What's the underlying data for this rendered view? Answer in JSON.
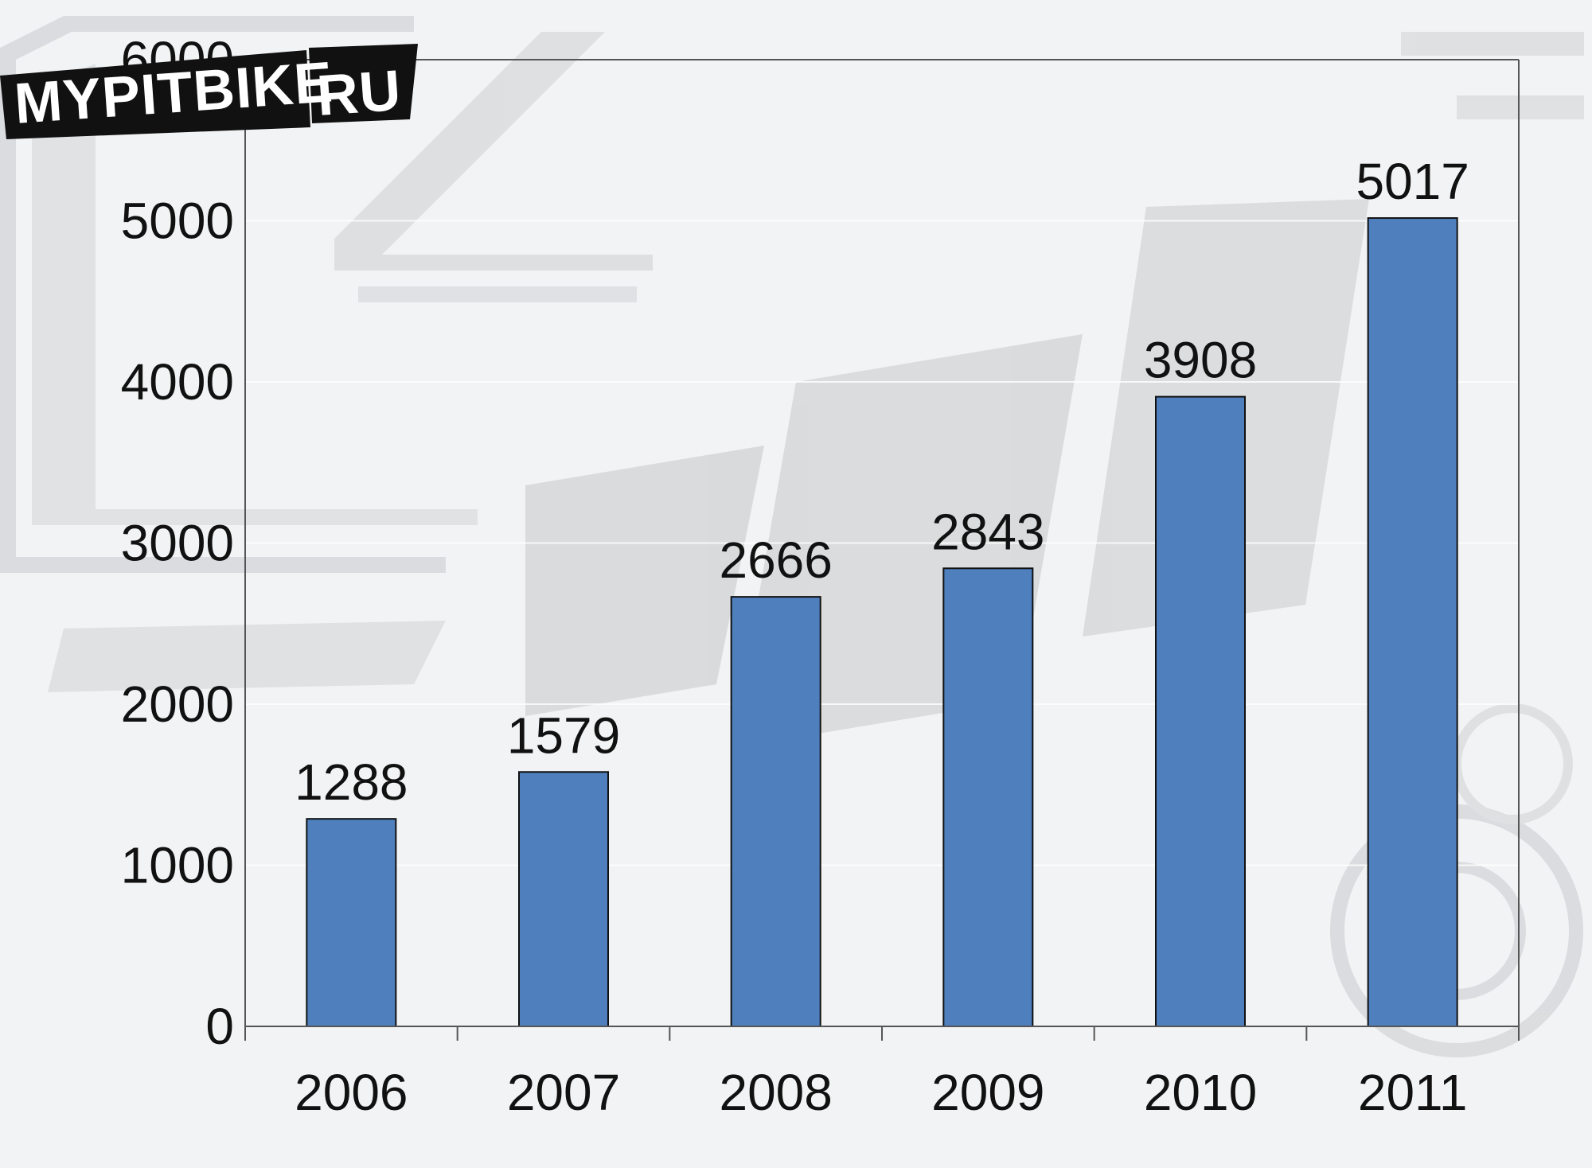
{
  "brand": {
    "logo_text": "MYPITBIKE",
    "logo_suffix": "RU"
  },
  "colors": {
    "bar": "#4f7fbd",
    "background": "#f2f3f4",
    "watermark": "#c9cbce"
  },
  "chart_data": {
    "type": "bar",
    "categories": [
      "2006",
      "2007",
      "2008",
      "2009",
      "2010",
      "2011"
    ],
    "values": [
      1288,
      1579,
      2666,
      2843,
      3908,
      5017
    ],
    "data_labels": [
      "1288",
      "1579",
      "2666",
      "2843",
      "3908",
      "5017"
    ],
    "y_ticks": [
      "0",
      "1000",
      "2000",
      "3000",
      "4000",
      "5000",
      "6000"
    ],
    "ylim": [
      0,
      6000
    ],
    "title": "",
    "xlabel": "",
    "ylabel": "",
    "grid": true,
    "legend": "none"
  }
}
